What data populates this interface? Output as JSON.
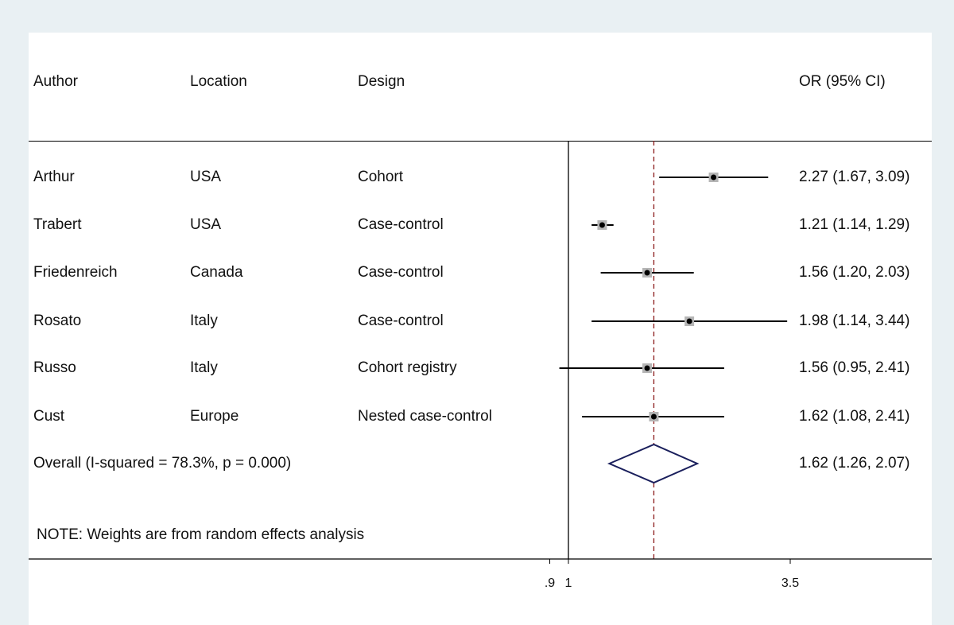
{
  "chart_data": {
    "type": "forest",
    "columns": {
      "author": "Author",
      "location": "Location",
      "design": "Design",
      "effect": "OR (95% CI)"
    },
    "studies": [
      {
        "author": "Arthur",
        "location": "USA",
        "design": "Cohort",
        "or": 2.27,
        "lo": 1.67,
        "hi": 3.09,
        "label": "2.27 (1.67, 3.09)"
      },
      {
        "author": "Trabert",
        "location": "USA",
        "design": "Case-control",
        "or": 1.21,
        "lo": 1.14,
        "hi": 1.29,
        "label": "1.21 (1.14, 1.29)"
      },
      {
        "author": "Friedenreich",
        "location": "Canada",
        "design": "Case-control",
        "or": 1.56,
        "lo": 1.2,
        "hi": 2.03,
        "label": "1.56 (1.20, 2.03)"
      },
      {
        "author": "Rosato",
        "location": "Italy",
        "design": "Case-control",
        "or": 1.98,
        "lo": 1.14,
        "hi": 3.44,
        "label": "1.98 (1.14, 3.44)"
      },
      {
        "author": "Russo",
        "location": "Italy",
        "design": "Cohort registry",
        "or": 1.56,
        "lo": 0.95,
        "hi": 2.41,
        "label": "1.56 (0.95, 2.41)"
      },
      {
        "author": "Cust",
        "location": "Europe",
        "design": "Nested case-control",
        "or": 1.62,
        "lo": 1.08,
        "hi": 2.41,
        "label": "1.62 (1.08, 2.41)"
      }
    ],
    "overall": {
      "text": "Overall  (I-squared = 78.3%, p = 0.000)",
      "or": 1.62,
      "lo": 1.26,
      "hi": 2.07,
      "label": "1.62 (1.26, 2.07)"
    },
    "note": "NOTE: Weights are from random effects analysis",
    "x_axis": {
      "scale": "log",
      "ticks": [
        {
          "value": 0.9,
          "label": ".9"
        },
        {
          "value": 1,
          "label": "1"
        },
        {
          "value": 3.5,
          "label": "3.5"
        }
      ],
      "range": [
        0.9,
        3.5
      ]
    },
    "null_line": 1,
    "colors": {
      "background": "#e9f0f3",
      "panel": "#ffffff",
      "ci_line": "#000000",
      "weight_box": "#b5b5b5",
      "diamond": "#1a1f5c",
      "overall_line": "#8b1a1a"
    }
  }
}
